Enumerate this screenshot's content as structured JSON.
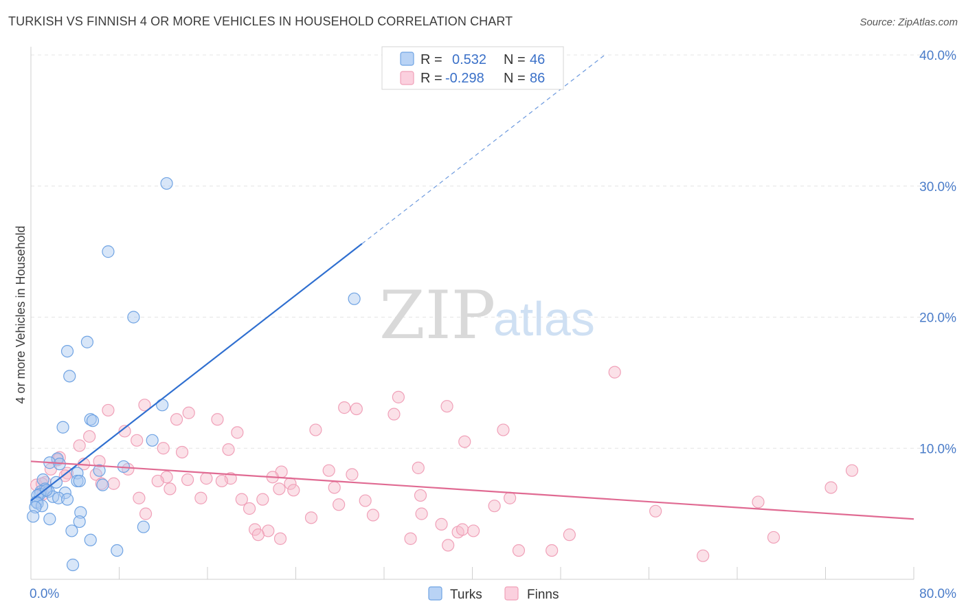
{
  "title": "TURKISH VS FINNISH 4 OR MORE VEHICLES IN HOUSEHOLD CORRELATION CHART",
  "source": "Source: ZipAtlas.com",
  "watermark": {
    "zip": "ZIP",
    "atlas": "atlas"
  },
  "chart_data": {
    "type": "scatter",
    "title": "TURKISH VS FINNISH 4 OR MORE VEHICLES IN HOUSEHOLD CORRELATION CHART",
    "xlabel": "",
    "ylabel": "4 or more Vehicles in Household",
    "xlim": [
      0,
      80
    ],
    "ylim": [
      0,
      40
    ],
    "x_tick_labels": [
      "0.0%",
      "80.0%"
    ],
    "y_ticks": [
      10,
      20,
      30,
      40
    ],
    "y_tick_labels": [
      "10.0%",
      "20.0%",
      "30.0%",
      "40.0%"
    ],
    "grid": true,
    "legend_placement": "top-center",
    "colors": {
      "turks": "#6fa3e3",
      "turks_line": "#2f6fd0",
      "finns": "#f0a0b8",
      "finns_line": "#e06a92"
    },
    "legend": [
      {
        "name": "Turks",
        "r_label": "R =",
        "r": "0.532",
        "n_label": "N =",
        "n": "46"
      },
      {
        "name": "Finns",
        "r_label": "R =",
        "r": "-0.298",
        "n_label": "N =",
        "n": "86"
      }
    ],
    "series": [
      {
        "name": "Turks",
        "trend": {
          "x0": 0,
          "y0": 6.0,
          "x1": 30,
          "y1": 25.6,
          "dash_to_x": 52,
          "dash_to_y": 40.0
        },
        "points": [
          [
            12.3,
            30.2
          ],
          [
            7.0,
            25.0
          ],
          [
            29.3,
            21.4
          ],
          [
            9.3,
            20.0
          ],
          [
            5.1,
            18.1
          ],
          [
            3.3,
            17.4
          ],
          [
            3.5,
            15.5
          ],
          [
            11.9,
            13.3
          ],
          [
            5.4,
            12.2
          ],
          [
            5.6,
            12.1
          ],
          [
            2.9,
            11.6
          ],
          [
            11.0,
            10.6
          ],
          [
            2.4,
            9.2
          ],
          [
            1.7,
            8.9
          ],
          [
            2.6,
            8.8
          ],
          [
            8.4,
            8.6
          ],
          [
            6.2,
            8.3
          ],
          [
            4.2,
            8.1
          ],
          [
            1.1,
            7.6
          ],
          [
            2.3,
            7.4
          ],
          [
            4.2,
            7.5
          ],
          [
            4.4,
            7.5
          ],
          [
            6.5,
            7.2
          ],
          [
            1.3,
            6.9
          ],
          [
            0.9,
            6.7
          ],
          [
            1.6,
            6.7
          ],
          [
            3.1,
            6.6
          ],
          [
            0.8,
            6.5
          ],
          [
            0.6,
            6.4
          ],
          [
            2.0,
            6.3
          ],
          [
            2.5,
            6.2
          ],
          [
            3.3,
            6.1
          ],
          [
            0.5,
            5.9
          ],
          [
            0.6,
            5.8
          ],
          [
            1.0,
            5.6
          ],
          [
            0.4,
            5.5
          ],
          [
            4.5,
            5.1
          ],
          [
            0.2,
            4.8
          ],
          [
            1.7,
            4.6
          ],
          [
            4.4,
            4.4
          ],
          [
            10.2,
            4.0
          ],
          [
            3.7,
            3.7
          ],
          [
            5.4,
            3.0
          ],
          [
            7.8,
            2.2
          ],
          [
            3.8,
            1.1
          ],
          [
            1.4,
            6.8
          ]
        ]
      },
      {
        "name": "Finns",
        "trend": {
          "x0": 0,
          "y0": 9.0,
          "x1": 80,
          "y1": 4.6
        },
        "points": [
          [
            52.9,
            15.8
          ],
          [
            33.3,
            13.9
          ],
          [
            10.3,
            13.3
          ],
          [
            28.4,
            13.1
          ],
          [
            29.5,
            13.0
          ],
          [
            37.7,
            13.2
          ],
          [
            7.0,
            12.9
          ],
          [
            14.3,
            12.7
          ],
          [
            16.9,
            12.2
          ],
          [
            13.2,
            12.2
          ],
          [
            32.9,
            12.6
          ],
          [
            8.5,
            11.3
          ],
          [
            18.7,
            11.2
          ],
          [
            25.8,
            11.4
          ],
          [
            42.8,
            11.4
          ],
          [
            5.3,
            10.9
          ],
          [
            9.6,
            10.6
          ],
          [
            39.3,
            10.5
          ],
          [
            4.4,
            10.2
          ],
          [
            12.0,
            10.0
          ],
          [
            13.7,
            9.7
          ],
          [
            17.9,
            9.9
          ],
          [
            2.4,
            9.1
          ],
          [
            4.8,
            8.8
          ],
          [
            35.1,
            8.5
          ],
          [
            74.4,
            8.3
          ],
          [
            8.8,
            8.4
          ],
          [
            3.3,
            8.1
          ],
          [
            27.0,
            8.3
          ],
          [
            29.1,
            8.0
          ],
          [
            5.9,
            8.0
          ],
          [
            22.7,
            8.2
          ],
          [
            12.3,
            7.8
          ],
          [
            15.9,
            7.7
          ],
          [
            18.1,
            7.7
          ],
          [
            21.9,
            7.8
          ],
          [
            1.3,
            7.4
          ],
          [
            6.4,
            7.3
          ],
          [
            7.5,
            7.3
          ],
          [
            11.5,
            7.5
          ],
          [
            14.2,
            7.6
          ],
          [
            17.3,
            7.5
          ],
          [
            23.5,
            7.3
          ],
          [
            27.5,
            7.0
          ],
          [
            0.5,
            7.2
          ],
          [
            12.6,
            6.9
          ],
          [
            22.5,
            6.9
          ],
          [
            23.8,
            6.8
          ],
          [
            72.5,
            7.0
          ],
          [
            1.1,
            6.5
          ],
          [
            9.8,
            6.2
          ],
          [
            15.4,
            6.2
          ],
          [
            19.1,
            6.1
          ],
          [
            21.0,
            6.1
          ],
          [
            35.3,
            6.4
          ],
          [
            43.4,
            6.2
          ],
          [
            30.3,
            6.0
          ],
          [
            65.9,
            5.9
          ],
          [
            19.8,
            5.4
          ],
          [
            27.9,
            5.7
          ],
          [
            42.0,
            5.6
          ],
          [
            56.6,
            5.2
          ],
          [
            10.4,
            5.0
          ],
          [
            25.4,
            4.7
          ],
          [
            35.4,
            5.0
          ],
          [
            31.0,
            4.9
          ],
          [
            37.2,
            4.2
          ],
          [
            20.3,
            3.8
          ],
          [
            21.5,
            3.7
          ],
          [
            38.7,
            3.6
          ],
          [
            39.1,
            3.8
          ],
          [
            40.1,
            3.7
          ],
          [
            20.6,
            3.4
          ],
          [
            48.8,
            3.4
          ],
          [
            22.6,
            3.1
          ],
          [
            34.4,
            3.1
          ],
          [
            67.3,
            3.2
          ],
          [
            37.8,
            2.6
          ],
          [
            44.2,
            2.2
          ],
          [
            47.2,
            2.2
          ],
          [
            60.9,
            1.8
          ],
          [
            2.6,
            9.3
          ],
          [
            6.2,
            9.0
          ],
          [
            1.8,
            8.4
          ],
          [
            3.1,
            7.9
          ],
          [
            1.0,
            7.3
          ]
        ]
      }
    ]
  }
}
